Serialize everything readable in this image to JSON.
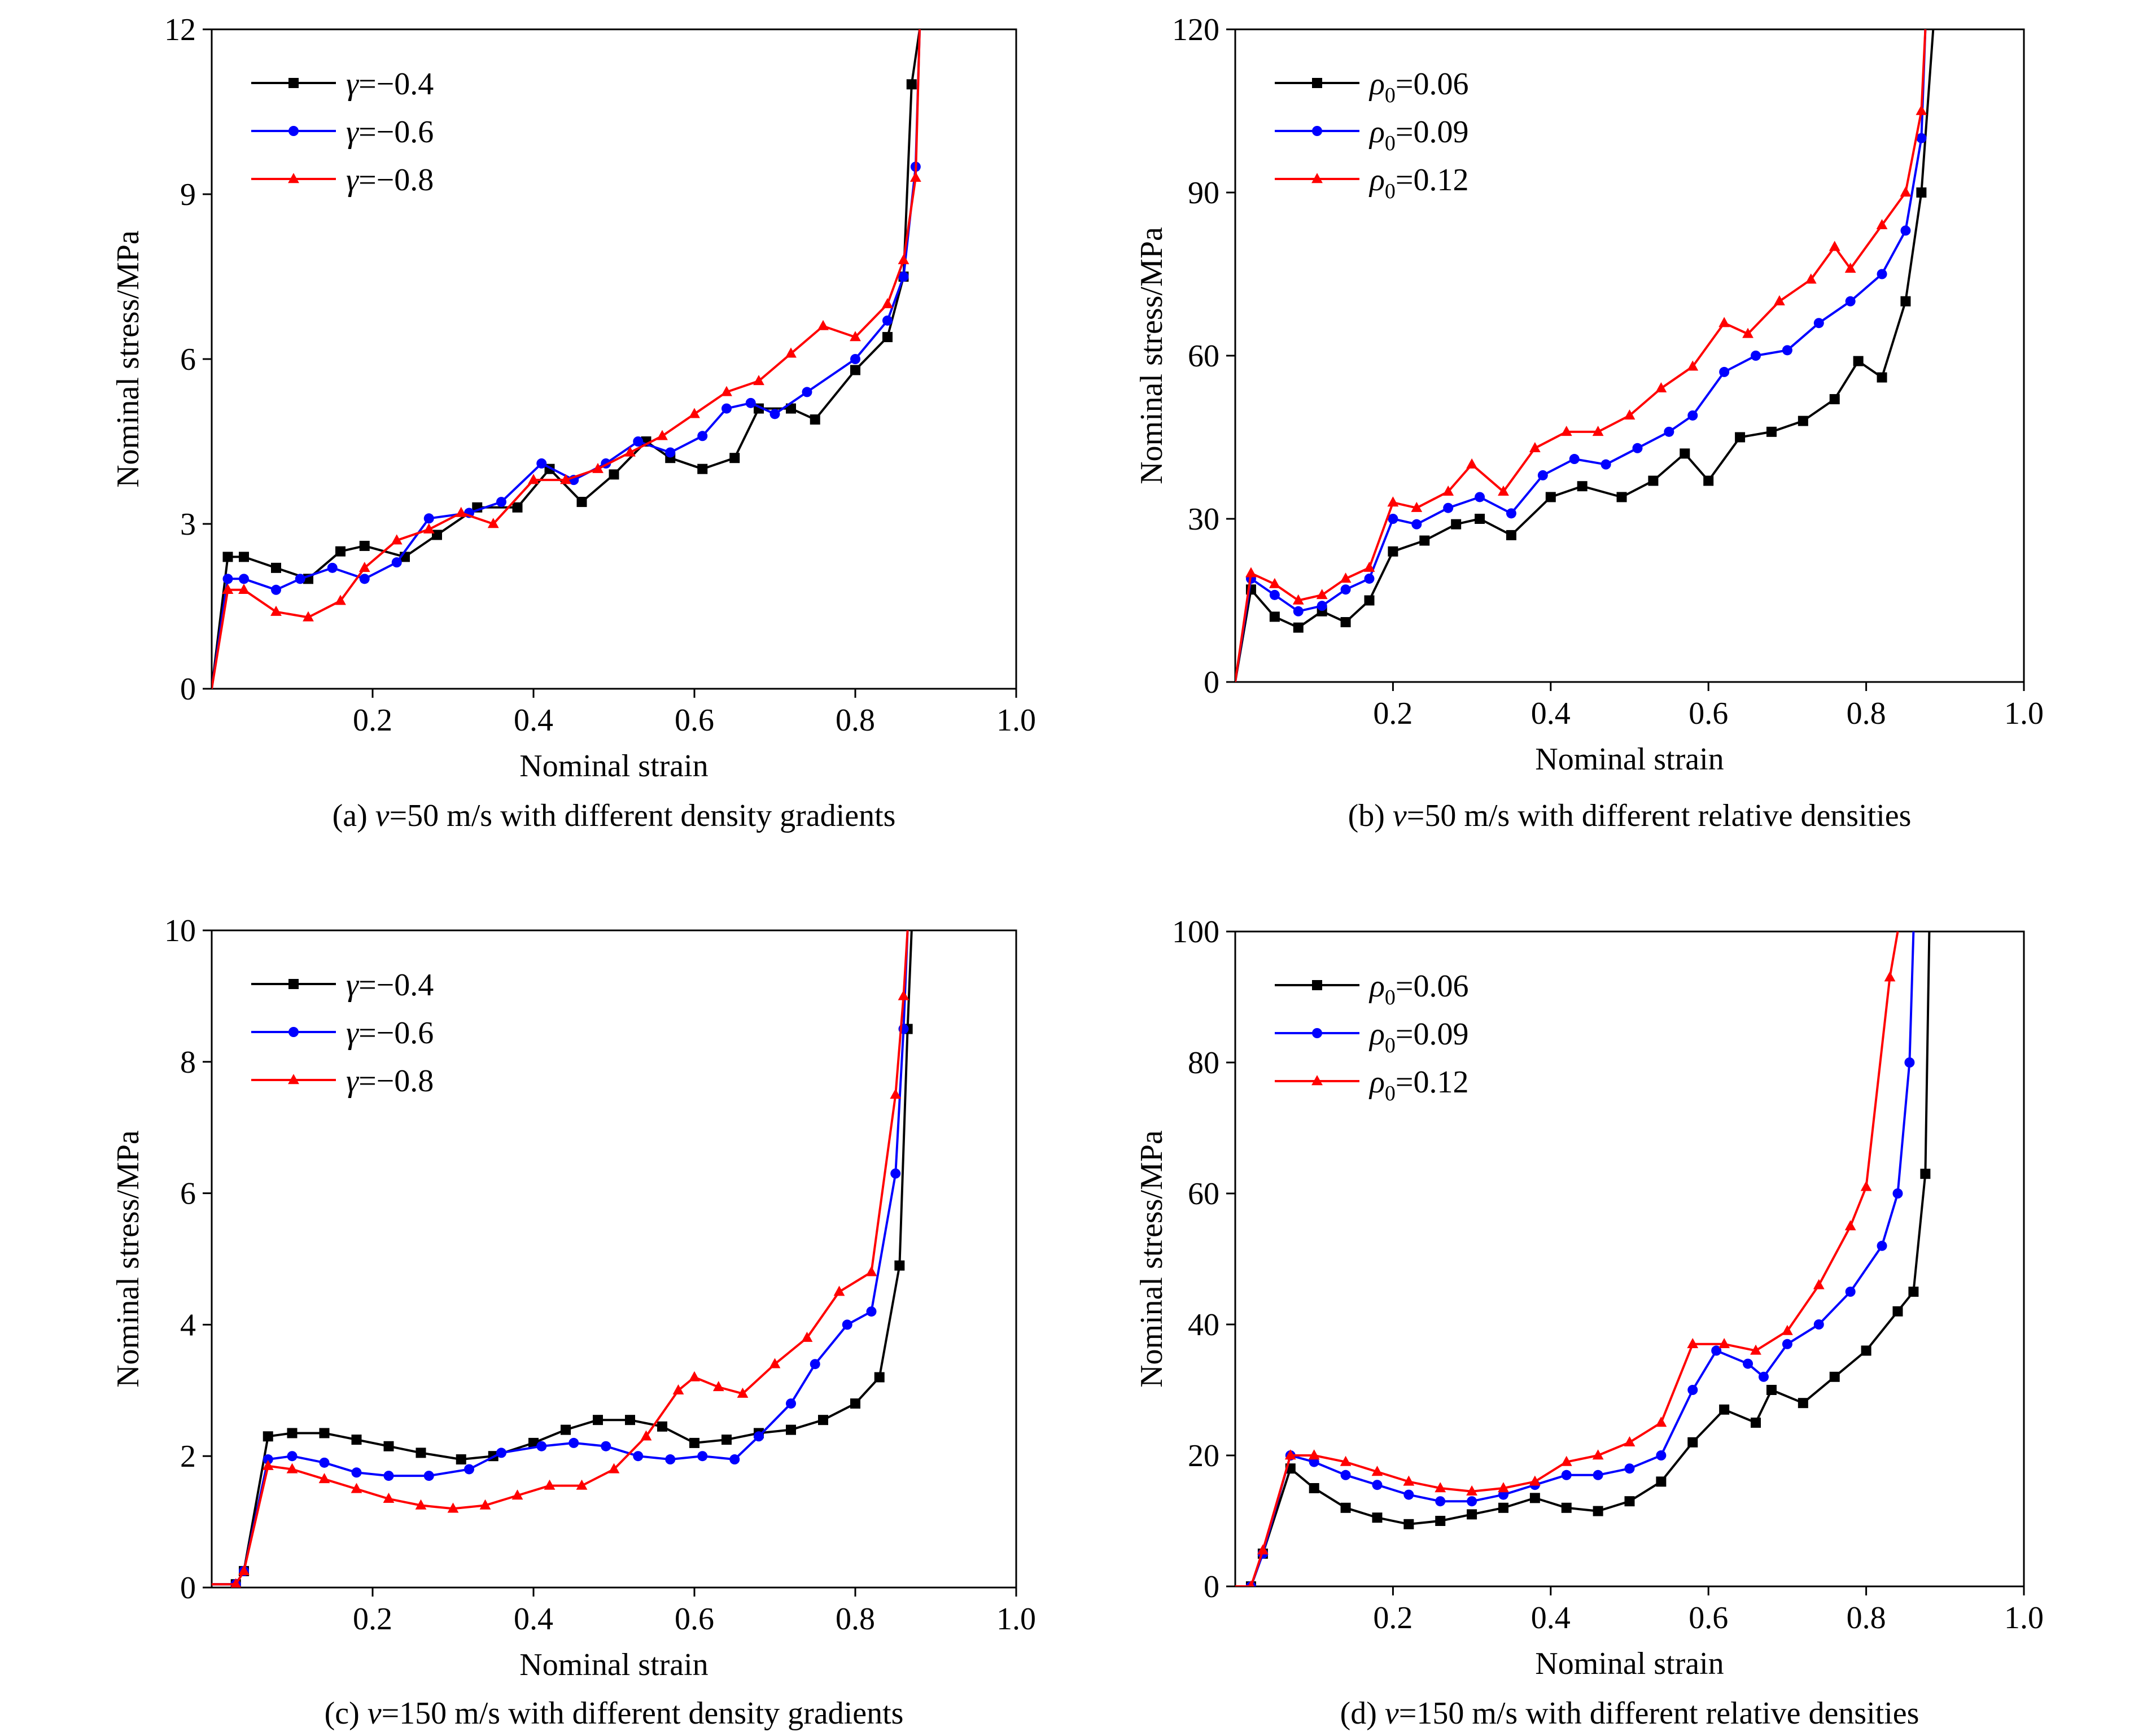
{
  "figure": {
    "xlabel": "Nominal strain",
    "ylabel": "Nominal stress/MPa"
  },
  "chart_data": [
    {
      "id": "a",
      "type": "line",
      "caption": {
        "prefix": "(a) ",
        "var": "v",
        "rest": "=50 m/s with different density gradients"
      },
      "xlabel": "Nominal strain",
      "ylabel": "Nominal stress/MPa",
      "xlim": [
        0,
        1.0
      ],
      "ylim": [
        0,
        12
      ],
      "xticks": [
        0.2,
        0.4,
        0.6,
        0.8,
        1.0
      ],
      "xtick_labels": [
        "0.2",
        "0.4",
        "0.6",
        "0.8",
        "1.0"
      ],
      "yticks": [
        0,
        3,
        6,
        9,
        12
      ],
      "ytick_labels": [
        "0",
        "3",
        "6",
        "9",
        "12"
      ],
      "grid": false,
      "legend": {
        "position": "top-left"
      },
      "series": [
        {
          "name_var": "γ",
          "name_rest": "=−0.4",
          "color": "#000000",
          "marker": "square",
          "x": [
            0,
            0.02,
            0.04,
            0.08,
            0.12,
            0.16,
            0.19,
            0.24,
            0.28,
            0.33,
            0.38,
            0.42,
            0.46,
            0.5,
            0.54,
            0.57,
            0.61,
            0.65,
            0.68,
            0.72,
            0.75,
            0.8,
            0.84,
            0.86,
            0.87,
            0.88
          ],
          "y": [
            0,
            2.4,
            2.4,
            2.2,
            2.0,
            2.5,
            2.6,
            2.4,
            2.8,
            3.3,
            3.3,
            4.0,
            3.4,
            3.9,
            4.5,
            4.2,
            4.0,
            4.2,
            5.1,
            5.1,
            4.9,
            5.8,
            6.4,
            7.5,
            11,
            12
          ]
        },
        {
          "name_var": "γ",
          "name_rest": "=−0.6",
          "color": "#0000ff",
          "marker": "circle",
          "x": [
            0,
            0.02,
            0.04,
            0.08,
            0.11,
            0.15,
            0.19,
            0.23,
            0.27,
            0.32,
            0.36,
            0.41,
            0.45,
            0.49,
            0.53,
            0.57,
            0.61,
            0.64,
            0.67,
            0.7,
            0.74,
            0.8,
            0.84,
            0.86,
            0.875,
            0.88
          ],
          "y": [
            0,
            2.0,
            2.0,
            1.8,
            2.0,
            2.2,
            2.0,
            2.3,
            3.1,
            3.2,
            3.4,
            4.1,
            3.8,
            4.1,
            4.5,
            4.3,
            4.6,
            5.1,
            5.2,
            5.0,
            5.4,
            6.0,
            6.7,
            7.5,
            9.5,
            12
          ]
        },
        {
          "name_var": "γ",
          "name_rest": "=−0.8",
          "color": "#ff0000",
          "marker": "triangle",
          "x": [
            0,
            0.02,
            0.04,
            0.08,
            0.12,
            0.16,
            0.19,
            0.23,
            0.27,
            0.31,
            0.35,
            0.4,
            0.44,
            0.48,
            0.52,
            0.56,
            0.6,
            0.64,
            0.68,
            0.72,
            0.76,
            0.8,
            0.84,
            0.86,
            0.875,
            0.88
          ],
          "y": [
            0,
            1.8,
            1.8,
            1.4,
            1.3,
            1.6,
            2.2,
            2.7,
            2.9,
            3.2,
            3.0,
            3.8,
            3.8,
            4.0,
            4.3,
            4.6,
            5.0,
            5.4,
            5.6,
            6.1,
            6.6,
            6.4,
            7.0,
            7.8,
            9.3,
            12
          ]
        }
      ]
    },
    {
      "id": "b",
      "type": "line",
      "caption": {
        "prefix": "(b) ",
        "var": "v",
        "rest": "=50 m/s with different relative densities"
      },
      "xlabel": "Nominal strain",
      "ylabel": "Nominal stress/MPa",
      "xlim": [
        0,
        1.0
      ],
      "ylim": [
        0,
        120
      ],
      "xticks": [
        0.2,
        0.4,
        0.6,
        0.8,
        1.0
      ],
      "xtick_labels": [
        "0.2",
        "0.4",
        "0.6",
        "0.8",
        "1.0"
      ],
      "yticks": [
        0,
        30,
        60,
        90,
        120
      ],
      "ytick_labels": [
        "0",
        "30",
        "60",
        "90",
        "120"
      ],
      "grid": false,
      "legend": {
        "position": "top-left"
      },
      "series": [
        {
          "name_var": "ρ",
          "name_sub": "0",
          "name_rest": "=0.06",
          "color": "#000000",
          "marker": "square",
          "x": [
            0,
            0.02,
            0.05,
            0.08,
            0.11,
            0.14,
            0.17,
            0.2,
            0.24,
            0.28,
            0.31,
            0.35,
            0.4,
            0.44,
            0.49,
            0.53,
            0.57,
            0.6,
            0.64,
            0.68,
            0.72,
            0.76,
            0.79,
            0.82,
            0.85,
            0.87,
            0.885
          ],
          "y": [
            0,
            17,
            12,
            10,
            13,
            11,
            15,
            24,
            26,
            29,
            30,
            27,
            34,
            36,
            34,
            37,
            42,
            37,
            45,
            46,
            48,
            52,
            59,
            56,
            70,
            90,
            120
          ]
        },
        {
          "name_var": "ρ",
          "name_sub": "0",
          "name_rest": "=0.09",
          "color": "#0000ff",
          "marker": "circle",
          "x": [
            0,
            0.02,
            0.05,
            0.08,
            0.11,
            0.14,
            0.17,
            0.2,
            0.23,
            0.27,
            0.31,
            0.35,
            0.39,
            0.43,
            0.47,
            0.51,
            0.55,
            0.58,
            0.62,
            0.66,
            0.7,
            0.74,
            0.78,
            0.82,
            0.85,
            0.87,
            0.875
          ],
          "y": [
            0,
            19,
            16,
            13,
            14,
            17,
            19,
            30,
            29,
            32,
            34,
            31,
            38,
            41,
            40,
            43,
            46,
            49,
            57,
            60,
            61,
            66,
            70,
            75,
            83,
            100,
            120
          ]
        },
        {
          "name_var": "ρ",
          "name_sub": "0",
          "name_rest": "=0.12",
          "color": "#ff0000",
          "marker": "triangle",
          "x": [
            0,
            0.02,
            0.05,
            0.08,
            0.11,
            0.14,
            0.17,
            0.2,
            0.23,
            0.27,
            0.3,
            0.34,
            0.38,
            0.42,
            0.46,
            0.5,
            0.54,
            0.58,
            0.62,
            0.65,
            0.69,
            0.73,
            0.76,
            0.78,
            0.82,
            0.85,
            0.87,
            0.875
          ],
          "y": [
            0,
            20,
            18,
            15,
            16,
            19,
            21,
            33,
            32,
            35,
            40,
            35,
            43,
            46,
            46,
            49,
            54,
            58,
            66,
            64,
            70,
            74,
            80,
            76,
            84,
            90,
            105,
            120
          ]
        }
      ]
    },
    {
      "id": "c",
      "type": "line",
      "caption": {
        "prefix": "(c) ",
        "var": "v",
        "rest": "=150 m/s with different density gradients"
      },
      "xlabel": "Nominal strain",
      "ylabel": "Nominal stress/MPa",
      "xlim": [
        0,
        1.0
      ],
      "ylim": [
        0,
        10
      ],
      "xticks": [
        0.2,
        0.4,
        0.6,
        0.8,
        1.0
      ],
      "xtick_labels": [
        "0.2",
        "0.4",
        "0.6",
        "0.8",
        "1.0"
      ],
      "yticks": [
        0,
        2,
        4,
        6,
        8,
        10
      ],
      "ytick_labels": [
        "0",
        "2",
        "4",
        "6",
        "8",
        "10"
      ],
      "grid": false,
      "legend": {
        "position": "top-left"
      },
      "series": [
        {
          "name_var": "γ",
          "name_rest": "=−0.4",
          "color": "#000000",
          "marker": "square",
          "x": [
            0,
            0.03,
            0.04,
            0.07,
            0.1,
            0.14,
            0.18,
            0.22,
            0.26,
            0.31,
            0.35,
            0.4,
            0.44,
            0.48,
            0.52,
            0.56,
            0.6,
            0.64,
            0.68,
            0.72,
            0.76,
            0.8,
            0.83,
            0.855,
            0.865,
            0.87
          ],
          "y": [
            0.05,
            0.05,
            0.25,
            2.3,
            2.35,
            2.35,
            2.25,
            2.15,
            2.05,
            1.95,
            2.0,
            2.2,
            2.4,
            2.55,
            2.55,
            2.45,
            2.2,
            2.25,
            2.35,
            2.4,
            2.55,
            2.8,
            3.2,
            4.9,
            8.5,
            10
          ]
        },
        {
          "name_var": "γ",
          "name_rest": "=−0.6",
          "color": "#0000ff",
          "marker": "circle",
          "x": [
            0,
            0.03,
            0.04,
            0.07,
            0.1,
            0.14,
            0.18,
            0.22,
            0.27,
            0.32,
            0.36,
            0.41,
            0.45,
            0.49,
            0.53,
            0.57,
            0.61,
            0.65,
            0.68,
            0.72,
            0.75,
            0.79,
            0.82,
            0.85,
            0.86,
            0.865
          ],
          "y": [
            0.05,
            0.05,
            0.25,
            1.95,
            2.0,
            1.9,
            1.75,
            1.7,
            1.7,
            1.8,
            2.05,
            2.15,
            2.2,
            2.15,
            2.0,
            1.95,
            2.0,
            1.95,
            2.3,
            2.8,
            3.4,
            4.0,
            4.2,
            6.3,
            8.5,
            10
          ]
        },
        {
          "name_var": "γ",
          "name_rest": "=−0.8",
          "color": "#ff0000",
          "marker": "triangle",
          "x": [
            0,
            0.03,
            0.04,
            0.07,
            0.1,
            0.14,
            0.18,
            0.22,
            0.26,
            0.3,
            0.34,
            0.38,
            0.42,
            0.46,
            0.5,
            0.54,
            0.58,
            0.6,
            0.63,
            0.66,
            0.7,
            0.74,
            0.78,
            0.82,
            0.85,
            0.86,
            0.865
          ],
          "y": [
            0.05,
            0.05,
            0.25,
            1.85,
            1.8,
            1.65,
            1.5,
            1.35,
            1.25,
            1.2,
            1.25,
            1.4,
            1.55,
            1.55,
            1.8,
            2.3,
            3.0,
            3.2,
            3.05,
            2.95,
            3.4,
            3.8,
            4.5,
            4.8,
            7.5,
            9.0,
            10
          ]
        }
      ]
    },
    {
      "id": "d",
      "type": "line",
      "caption": {
        "prefix": "(d) ",
        "var": "v",
        "rest": "=150 m/s with different relative densities"
      },
      "xlabel": "Nominal strain",
      "ylabel": "Nominal stress/MPa",
      "xlim": [
        0,
        1.0
      ],
      "ylim": [
        0,
        100
      ],
      "xticks": [
        0.2,
        0.4,
        0.6,
        0.8,
        1.0
      ],
      "xtick_labels": [
        "0.2",
        "0.4",
        "0.6",
        "0.8",
        "1.0"
      ],
      "yticks": [
        0,
        20,
        40,
        60,
        80,
        100
      ],
      "ytick_labels": [
        "0",
        "20",
        "40",
        "60",
        "80",
        "100"
      ],
      "grid": false,
      "legend": {
        "position": "top-left"
      },
      "series": [
        {
          "name_var": "ρ",
          "name_sub": "0",
          "name_rest": "=0.06",
          "color": "#000000",
          "marker": "square",
          "x": [
            0,
            0.02,
            0.035,
            0.07,
            0.1,
            0.14,
            0.18,
            0.22,
            0.26,
            0.3,
            0.34,
            0.38,
            0.42,
            0.46,
            0.5,
            0.54,
            0.58,
            0.62,
            0.66,
            0.68,
            0.72,
            0.76,
            0.8,
            0.84,
            0.86,
            0.875,
            0.88
          ],
          "y": [
            0,
            0,
            5,
            18,
            15,
            12,
            10.5,
            9.5,
            10,
            11,
            12,
            13.5,
            12,
            11.5,
            13,
            16,
            22,
            27,
            25,
            30,
            28,
            32,
            36,
            42,
            45,
            63,
            100
          ]
        },
        {
          "name_var": "ρ",
          "name_sub": "0",
          "name_rest": "=0.09",
          "color": "#0000ff",
          "marker": "circle",
          "x": [
            0,
            0.02,
            0.035,
            0.07,
            0.1,
            0.14,
            0.18,
            0.22,
            0.26,
            0.3,
            0.34,
            0.38,
            0.42,
            0.46,
            0.5,
            0.54,
            0.58,
            0.61,
            0.65,
            0.67,
            0.7,
            0.74,
            0.78,
            0.82,
            0.84,
            0.855,
            0.86
          ],
          "y": [
            0,
            0,
            5,
            20,
            19,
            17,
            15.5,
            14,
            13,
            13,
            14,
            15.5,
            17,
            17,
            18,
            20,
            30,
            36,
            34,
            32,
            37,
            40,
            45,
            52,
            60,
            80,
            100
          ]
        },
        {
          "name_var": "ρ",
          "name_sub": "0",
          "name_rest": "=0.12",
          "color": "#ff0000",
          "marker": "triangle",
          "x": [
            0,
            0.02,
            0.035,
            0.07,
            0.1,
            0.14,
            0.18,
            0.22,
            0.26,
            0.3,
            0.34,
            0.38,
            0.42,
            0.46,
            0.5,
            0.54,
            0.58,
            0.62,
            0.66,
            0.7,
            0.74,
            0.78,
            0.8,
            0.83,
            0.84
          ],
          "y": [
            0,
            0,
            5.5,
            20,
            20,
            19,
            17.5,
            16,
            15,
            14.5,
            15,
            16,
            19,
            20,
            22,
            25,
            37,
            37,
            36,
            39,
            46,
            55,
            61,
            93,
            100
          ]
        }
      ]
    }
  ]
}
